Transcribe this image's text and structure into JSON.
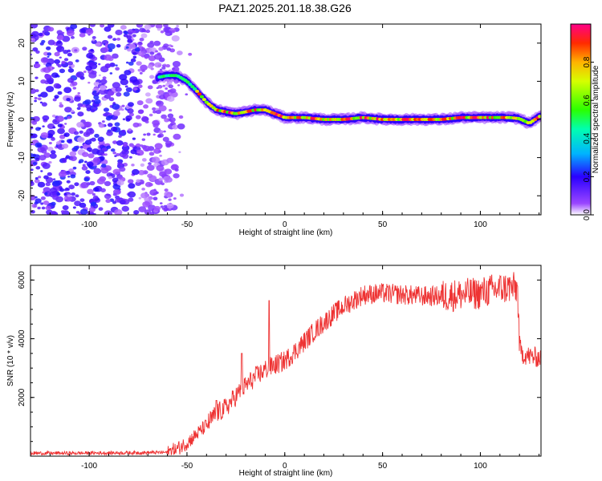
{
  "title": "PAZ1.2025.201.18.38.G26",
  "chart_data": [
    {
      "type": "heatmap",
      "xlabel": "Height of straight line (km)",
      "ylabel": "Frequency (Hz)",
      "xlim": [
        -130,
        131
      ],
      "ylim": [
        -25,
        25
      ],
      "x_ticks": [
        "-100",
        "-50",
        "0",
        "50",
        "100"
      ],
      "y_ticks": [
        "-20",
        "-10",
        "0",
        "10",
        "20"
      ],
      "colorbar": {
        "label": "Normalized spectral amplitude",
        "range": [
          0,
          1
        ],
        "ticks": [
          "0.0",
          "0.2",
          "0.4",
          "0.6",
          "0.8"
        ],
        "colormap": "rainbow (purple to red)"
      },
      "ridge": {
        "x": [
          -65,
          -60,
          -55,
          -50,
          -45,
          -40,
          -35,
          -30,
          -25,
          -20,
          -15,
          -10,
          -5,
          0,
          10,
          20,
          30,
          40,
          50,
          60,
          70,
          80,
          90,
          100,
          110,
          115,
          120,
          125,
          131
        ],
        "frequency": [
          11,
          11.5,
          11.5,
          10,
          7.5,
          4.5,
          2.5,
          2,
          1.5,
          2,
          2.5,
          2.5,
          1.5,
          0.5,
          0.5,
          0,
          0,
          0.5,
          0,
          0,
          0,
          0,
          0.5,
          0.5,
          0.5,
          0.5,
          0.2,
          -1,
          1
        ]
      },
      "noise_region": {
        "x_from": -130,
        "x_to": -55,
        "frequency_range": [
          -25,
          25
        ]
      }
    },
    {
      "type": "line",
      "xlabel": "Height of straight line (km)",
      "ylabel": "SNR (10 * v/v)",
      "xlim": [
        -130,
        131
      ],
      "ylim": [
        0,
        6500
      ],
      "x_ticks": [
        "-100",
        "-50",
        "0",
        "50",
        "100"
      ],
      "y_ticks": [
        "2000",
        "4000",
        "6000"
      ],
      "color": "#ee3333",
      "x": [
        -130,
        -110,
        -90,
        -70,
        -60,
        -55,
        -50,
        -45,
        -40,
        -35,
        -30,
        -25,
        -20,
        -15,
        -10,
        -5,
        0,
        5,
        10,
        15,
        20,
        25,
        30,
        35,
        40,
        50,
        60,
        70,
        80,
        90,
        100,
        105,
        110,
        115,
        119,
        120,
        121,
        125,
        131
      ],
      "snr": [
        100,
        100,
        110,
        120,
        130,
        250,
        450,
        750,
        1050,
        1450,
        1650,
        2050,
        2400,
        2700,
        2950,
        3100,
        3250,
        3550,
        3900,
        4250,
        4550,
        4850,
        5100,
        5300,
        5500,
        5550,
        5500,
        5450,
        5450,
        5500,
        5550,
        5650,
        5700,
        5750,
        5700,
        3800,
        3500,
        3400,
        3350
      ],
      "spikes": [
        {
          "x": -8,
          "snr": 5300
        },
        {
          "x": -22,
          "snr": 3500
        },
        {
          "x": -35,
          "snr": 1900
        }
      ],
      "noise_amplitude": 350
    }
  ]
}
